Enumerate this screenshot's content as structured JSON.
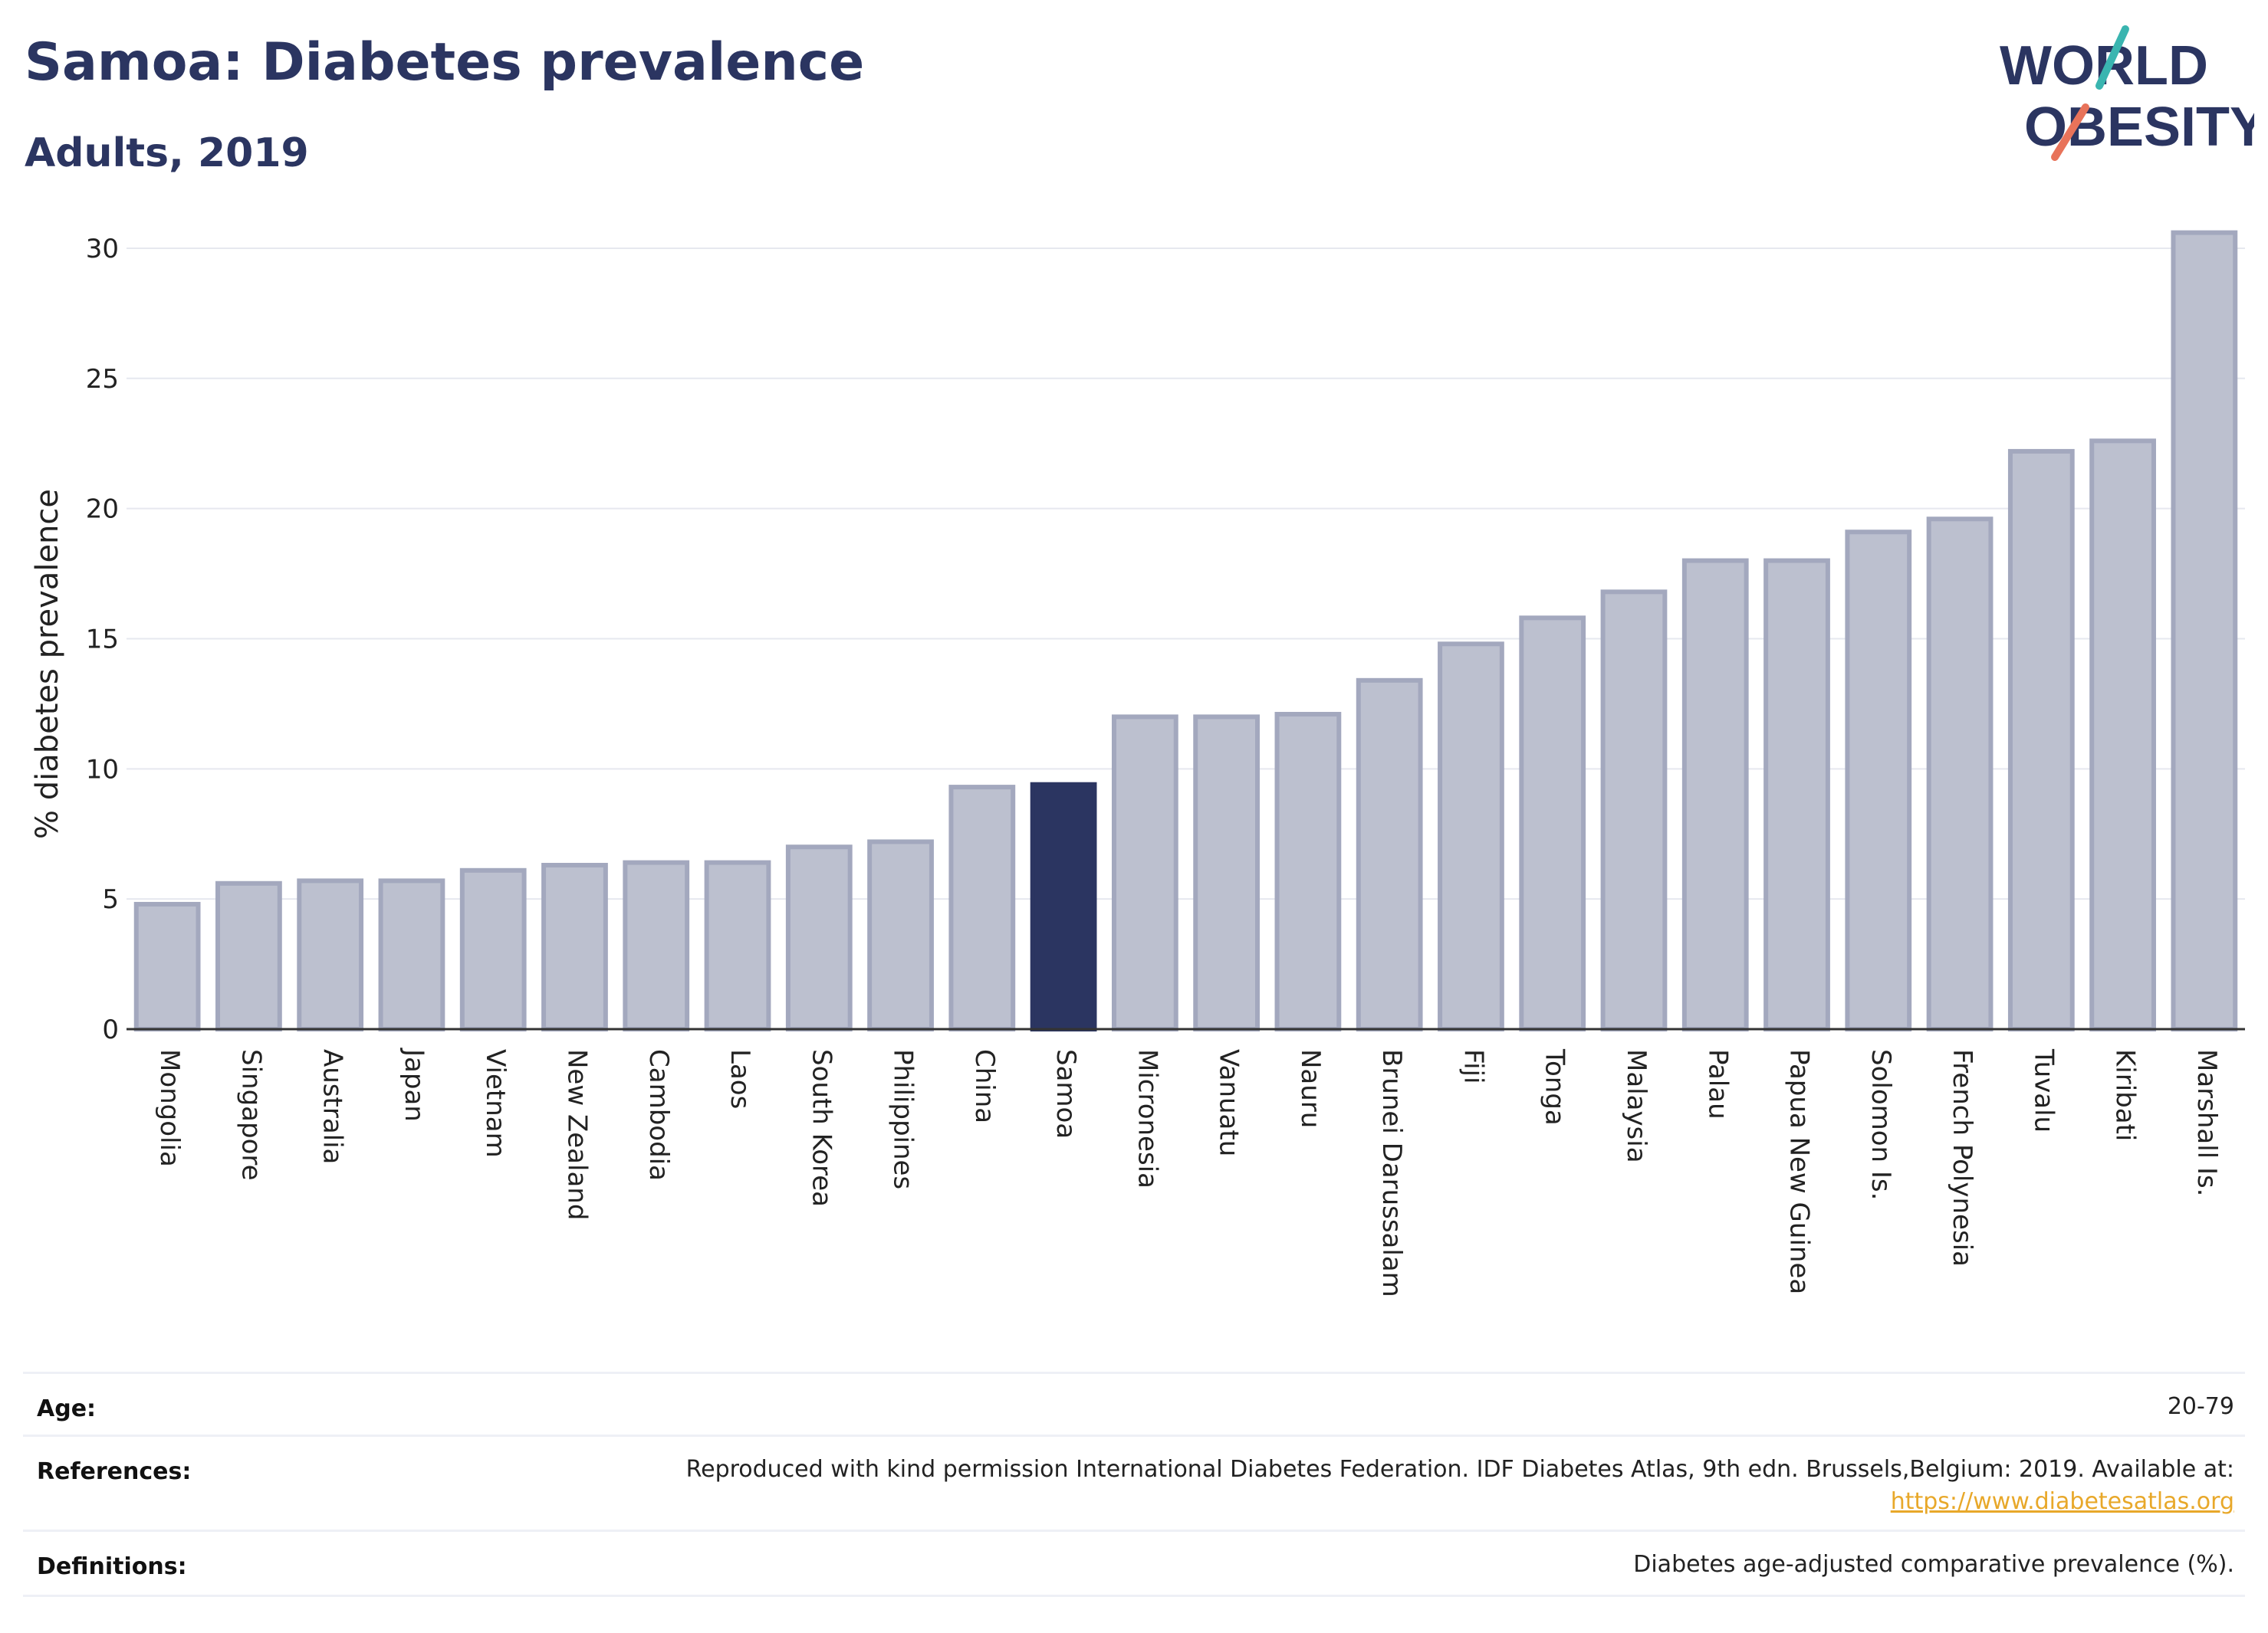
{
  "title": "Samoa: Diabetes prevalence",
  "subtitle": "Adults, 2019",
  "logo": {
    "line1": "WORLD",
    "line2": "OBESITY"
  },
  "colors": {
    "title": "#2b3561",
    "bar_default": "#bcc0cf",
    "bar_outline": "#a3a8be",
    "bar_highlight": "#2b3561",
    "grid": "#e6e8ef",
    "logo_teal": "#3ab5b0",
    "logo_coral": "#e8735a",
    "link": "#e8a82a"
  },
  "chart_data": {
    "type": "bar",
    "ylabel": "% diabetes prevalence",
    "xlabel": "",
    "ylim": [
      0,
      31
    ],
    "yticks": [
      0,
      5,
      10,
      15,
      20,
      25,
      30
    ],
    "highlight": "Samoa",
    "grid": true,
    "categories": [
      "Mongolia",
      "Singapore",
      "Australia",
      "Japan",
      "Vietnam",
      "New Zealand",
      "Cambodia",
      "Laos",
      "South Korea",
      "Philippines",
      "China",
      "Samoa",
      "Micronesia",
      "Vanuatu",
      "Nauru",
      "Brunei Darussalam",
      "Fiji",
      "Tonga",
      "Malaysia",
      "Palau",
      "Papua New Guinea",
      "Solomon Is.",
      "French Polynesia",
      "Tuvalu",
      "Kiribati",
      "Marshall Is."
    ],
    "values": [
      4.8,
      5.6,
      5.7,
      5.7,
      6.1,
      6.3,
      6.4,
      6.4,
      7.0,
      7.2,
      9.3,
      9.4,
      12.0,
      12.0,
      12.1,
      13.4,
      14.8,
      15.8,
      16.8,
      18.0,
      18.0,
      19.1,
      19.6,
      22.2,
      22.6,
      30.6
    ]
  },
  "footer": {
    "age": {
      "label": "Age:",
      "value": "20-79"
    },
    "references": {
      "label": "References:",
      "value": "Reproduced with kind permission International Diabetes Federation. IDF Diabetes Atlas, 9th edn. Brussels,Belgium: 2019. Available at:",
      "link": "https://www.diabetesatlas.org"
    },
    "definitions": {
      "label": "Definitions:",
      "value": "Diabetes age-adjusted comparative prevalence (%)."
    }
  }
}
